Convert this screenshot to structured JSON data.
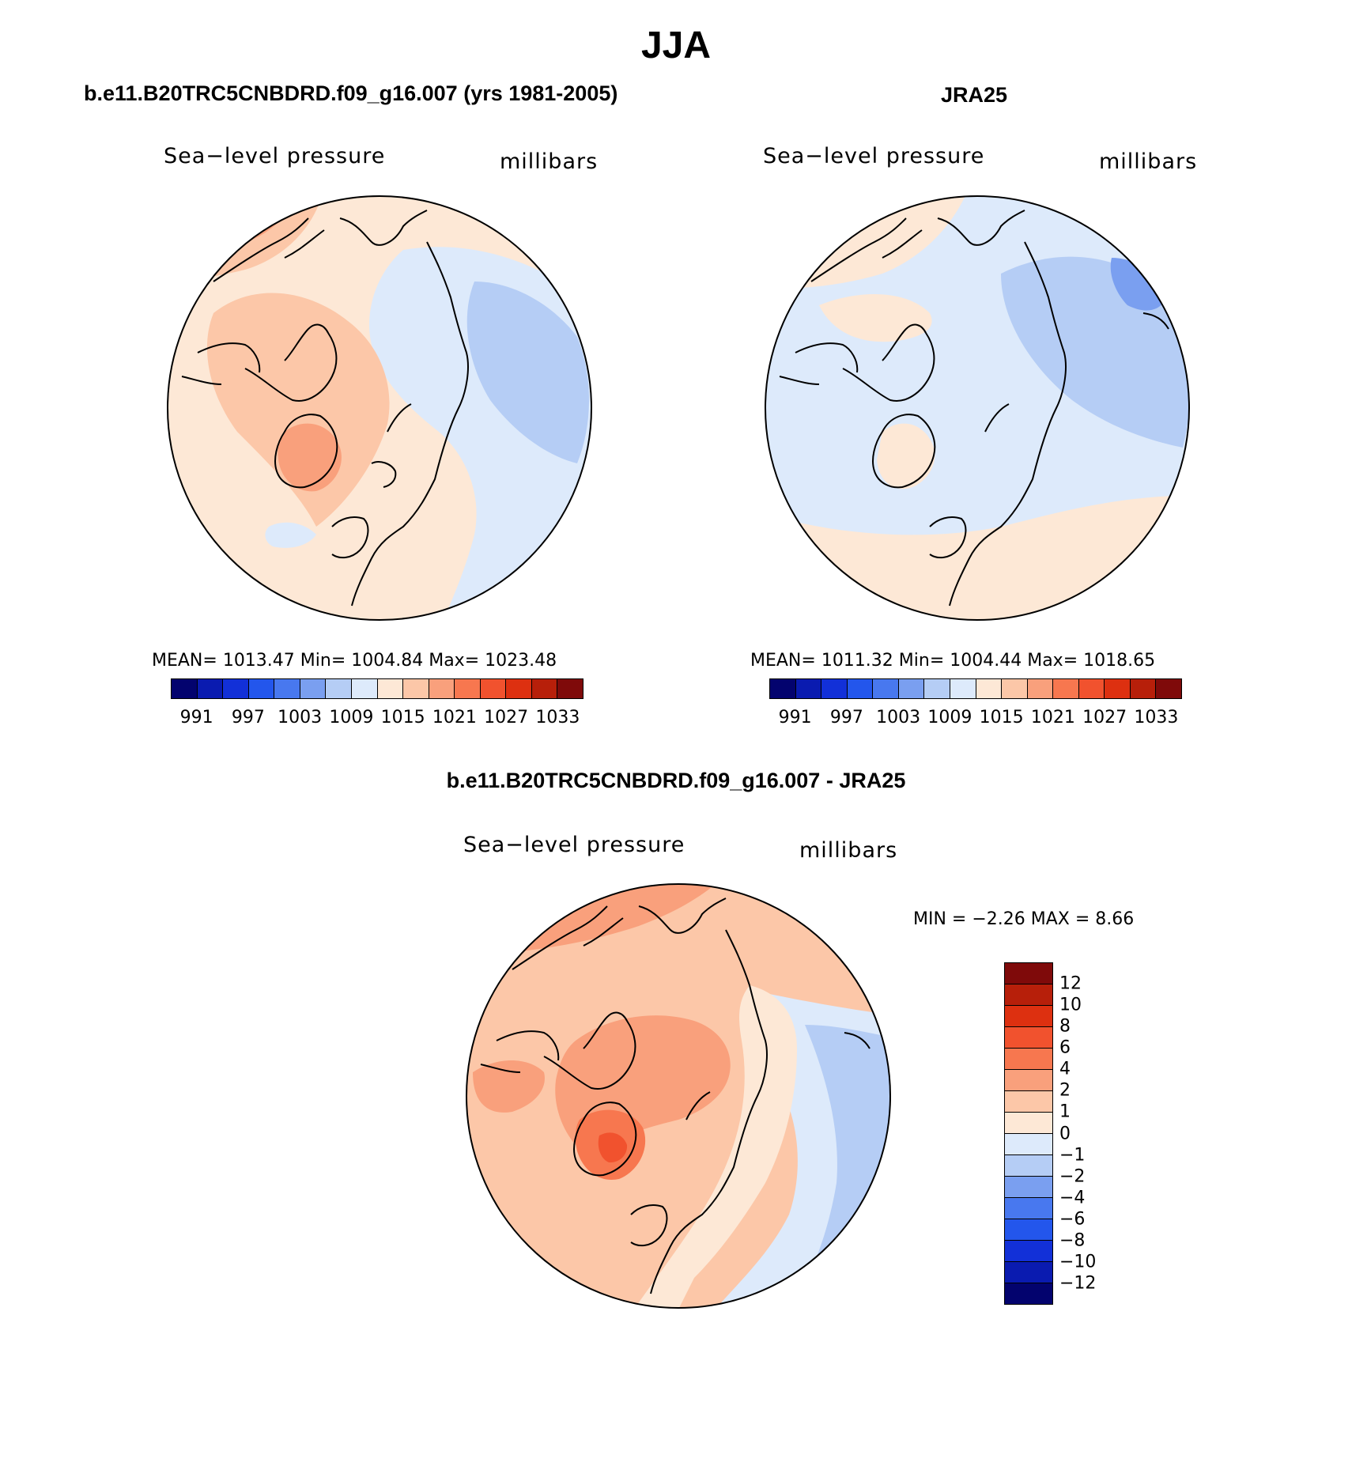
{
  "figure": {
    "title": "JJA",
    "bottom_title": "b.e11.B20TRC5CNBDRD.f09_g16.007 - JRA25"
  },
  "panels": [
    {
      "title": "b.e11.B20TRC5CNBDRD.f09_g16.007 (yrs 1981-2005)",
      "variable": "Sea−level pressure",
      "units": "millibars",
      "stats_text": "MEAN=  1013.47    Min=  1004.84    Max=  1023.48",
      "colorbar_labels": [
        "991",
        "997",
        "1003",
        "1009",
        "1015",
        "1021",
        "1027",
        "1033"
      ],
      "colorbar_colors": [
        "#03036e",
        "#0a1bb0",
        "#1230d8",
        "#2356ec",
        "#4878ef",
        "#7a9ff0",
        "#b5cdf5",
        "#ddeafb",
        "#fde8d6",
        "#fcc7a8",
        "#f9a07c",
        "#f7774f",
        "#f1522e",
        "#dd3010",
        "#b71f0a",
        "#7f0a0a"
      ]
    },
    {
      "title": "JRA25",
      "variable": "Sea−level pressure",
      "units": "millibars",
      "stats_text": "MEAN=  1011.32    Min=  1004.44    Max=  1018.65",
      "colorbar_labels": [
        "991",
        "997",
        "1003",
        "1009",
        "1015",
        "1021",
        "1027",
        "1033"
      ],
      "colorbar_colors": [
        "#03036e",
        "#0a1bb0",
        "#1230d8",
        "#2356ec",
        "#4878ef",
        "#7a9ff0",
        "#b5cdf5",
        "#ddeafb",
        "#fde8d6",
        "#fcc7a8",
        "#f9a07c",
        "#f7774f",
        "#f1522e",
        "#dd3010",
        "#b71f0a",
        "#7f0a0a"
      ]
    },
    {
      "title": "b.e11.B20TRC5CNBDRD.f09_g16.007 - JRA25",
      "variable": "Sea−level pressure",
      "units": "millibars",
      "stats_text": "MIN =    −2.26  MAX =     8.66",
      "colorbar_labels": [
        "12",
        "10",
        "8",
        "6",
        "4",
        "2",
        "1",
        "0",
        "−1",
        "−2",
        "−4",
        "−6",
        "−8",
        "−10",
        "−12"
      ],
      "colorbar_colors": [
        "#7f0a0a",
        "#b71f0a",
        "#dd3010",
        "#f1522e",
        "#f7774f",
        "#f9a07c",
        "#fcc7a8",
        "#fde8d6",
        "#ddeafb",
        "#b5cdf5",
        "#7a9ff0",
        "#4878ef",
        "#2356ec",
        "#1230d8",
        "#0a1bb0",
        "#03036e"
      ]
    }
  ],
  "map_colors": {
    "land_outline": "#000000",
    "circle_outline": "#000000"
  }
}
